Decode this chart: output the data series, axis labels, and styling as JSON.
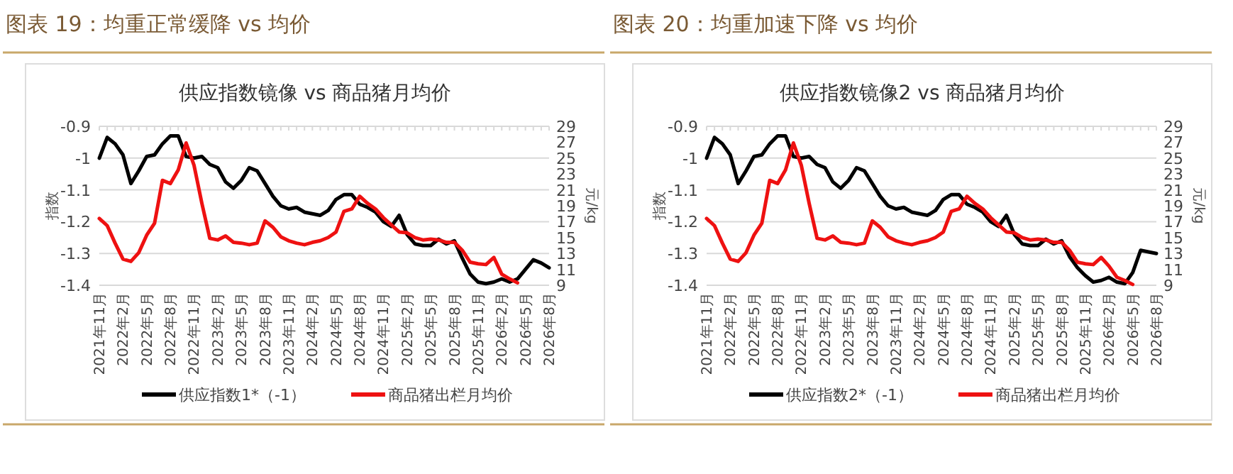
{
  "chart_data": [
    {
      "type": "line",
      "title": "图表 19：均重正常缓降 vs 均价",
      "subtitle": "供应指数镜像  vs 商品猪月均价",
      "ylabel": "指数",
      "y2label": "元/kg",
      "categories": [
        "2021年11月",
        null,
        null,
        "2022年2月",
        null,
        null,
        "2022年5月",
        null,
        null,
        "2022年8月",
        null,
        null,
        "2022年11月",
        null,
        null,
        "2023年2月",
        null,
        null,
        "2023年5月",
        null,
        null,
        "2023年8月",
        null,
        null,
        "2023年11月",
        null,
        null,
        "2024年2月",
        null,
        null,
        "2024年5月",
        null,
        null,
        "2024年8月",
        null,
        null,
        "2024年11月",
        null,
        null,
        "2025年2月",
        null,
        null,
        "2025年5月",
        null,
        null,
        "2025年8月",
        null,
        null,
        "2025年11月",
        null,
        null,
        "2026年2月",
        null,
        null,
        "2026年5月",
        null,
        null,
        "2026年8月"
      ],
      "ylim": [
        -1.4,
        -0.9
      ],
      "yticks": [
        -1.4,
        -1.3,
        -1.2,
        -1.1,
        -1,
        -0.9
      ],
      "y2lim": [
        9,
        29
      ],
      "y2ticks": [
        9,
        11,
        13,
        15,
        17,
        19,
        21,
        23,
        25,
        27,
        29
      ],
      "grid": "y",
      "legend": "bottom",
      "series": [
        {
          "name": "供应指数1*（-1）",
          "color": "#000000",
          "values": [
            -1.0,
            -0.935,
            -0.955,
            -0.99,
            -1.08,
            -1.04,
            -0.995,
            -0.99,
            -0.955,
            -0.93,
            -0.93,
            -0.995,
            -1.0,
            -0.995,
            -1.02,
            -1.03,
            -1.075,
            -1.095,
            -1.07,
            -1.03,
            -1.04,
            -1.08,
            -1.12,
            -1.15,
            -1.16,
            -1.155,
            -1.17,
            -1.175,
            -1.18,
            -1.165,
            -1.13,
            -1.115,
            -1.115,
            -1.145,
            -1.155,
            -1.17,
            -1.2,
            -1.215,
            -1.18,
            -1.24,
            -1.27,
            -1.275,
            -1.275,
            -1.255,
            -1.27,
            -1.26,
            -1.315,
            -1.365,
            -1.39,
            -1.395,
            -1.39,
            -1.38,
            -1.39,
            -1.38,
            -1.35,
            -1.32,
            -1.33,
            -1.345
          ]
        },
        {
          "name": "商品猪出栏月均价",
          "color": "#ee1111",
          "axis": "y2",
          "values": [
            17.4,
            16.5,
            14.3,
            12.3,
            12.0,
            13.1,
            15.3,
            16.8,
            22.2,
            21.8,
            23.5,
            26.9,
            24.1,
            19.3,
            14.9,
            14.7,
            15.2,
            14.4,
            14.3,
            14.1,
            14.3,
            17.1,
            16.3,
            15.1,
            14.6,
            14.3,
            14.1,
            14.4,
            14.6,
            15.0,
            15.7,
            18.3,
            18.6,
            20.2,
            19.3,
            18.6,
            17.5,
            16.6,
            15.7,
            15.6,
            15.0,
            14.7,
            14.8,
            14.7,
            14.4,
            14.4,
            13.4,
            11.9,
            11.7,
            11.6,
            12.5,
            10.4,
            9.8,
            9.3,
            null,
            null,
            null,
            null
          ]
        }
      ]
    },
    {
      "type": "line",
      "title": "图表 20：均重加速下降 vs 均价",
      "subtitle": "供应指数镜像2  vs 商品猪月均价",
      "ylabel": "指数",
      "y2label": "元/kg",
      "categories": [
        "2021年11月",
        null,
        null,
        "2022年2月",
        null,
        null,
        "2022年5月",
        null,
        null,
        "2022年8月",
        null,
        null,
        "2022年11月",
        null,
        null,
        "2023年2月",
        null,
        null,
        "2023年5月",
        null,
        null,
        "2023年8月",
        null,
        null,
        "2023年11月",
        null,
        null,
        "2024年2月",
        null,
        null,
        "2024年5月",
        null,
        null,
        "2024年8月",
        null,
        null,
        "2024年11月",
        null,
        null,
        "2025年2月",
        null,
        null,
        "2025年5月",
        null,
        null,
        "2025年8月",
        null,
        null,
        "2025年11月",
        null,
        null,
        "2026年2月",
        null,
        null,
        "2026年5月",
        null,
        null,
        "2026年8月"
      ],
      "ylim": [
        -1.4,
        -0.9
      ],
      "yticks": [
        -1.4,
        -1.3,
        -1.2,
        -1.1,
        -1,
        -0.9
      ],
      "y2lim": [
        9,
        29
      ],
      "y2ticks": [
        9,
        11,
        13,
        15,
        17,
        19,
        21,
        23,
        25,
        27,
        29
      ],
      "grid": "y",
      "legend": "bottom",
      "series": [
        {
          "name": "供应指数2*（-1）",
          "color": "#000000",
          "values": [
            -1.0,
            -0.935,
            -0.955,
            -0.99,
            -1.08,
            -1.04,
            -0.995,
            -0.99,
            -0.955,
            -0.93,
            -0.93,
            -0.995,
            -1.0,
            -0.995,
            -1.02,
            -1.03,
            -1.075,
            -1.095,
            -1.07,
            -1.03,
            -1.04,
            -1.08,
            -1.12,
            -1.15,
            -1.16,
            -1.155,
            -1.17,
            -1.175,
            -1.18,
            -1.165,
            -1.13,
            -1.115,
            -1.115,
            -1.145,
            -1.155,
            -1.17,
            -1.2,
            -1.215,
            -1.18,
            -1.24,
            -1.27,
            -1.275,
            -1.275,
            -1.255,
            -1.27,
            -1.26,
            -1.31,
            -1.345,
            -1.37,
            -1.39,
            -1.385,
            -1.375,
            -1.39,
            -1.395,
            -1.36,
            -1.29,
            -1.295,
            -1.3
          ]
        },
        {
          "name": "商品猪出栏月均价",
          "color": "#ee1111",
          "axis": "y2",
          "values": [
            17.4,
            16.5,
            14.3,
            12.3,
            12.0,
            13.1,
            15.3,
            16.8,
            22.2,
            21.8,
            23.5,
            26.9,
            24.1,
            19.3,
            14.9,
            14.7,
            15.2,
            14.4,
            14.3,
            14.1,
            14.3,
            17.1,
            16.3,
            15.1,
            14.6,
            14.3,
            14.1,
            14.4,
            14.6,
            15.0,
            15.7,
            18.3,
            18.6,
            20.2,
            19.3,
            18.6,
            17.5,
            16.6,
            15.7,
            15.6,
            15.0,
            14.7,
            14.8,
            14.7,
            14.4,
            14.4,
            13.4,
            11.9,
            11.7,
            11.6,
            12.5,
            11.4,
            10.0,
            9.6,
            9.1,
            null,
            null,
            null
          ]
        }
      ]
    }
  ]
}
